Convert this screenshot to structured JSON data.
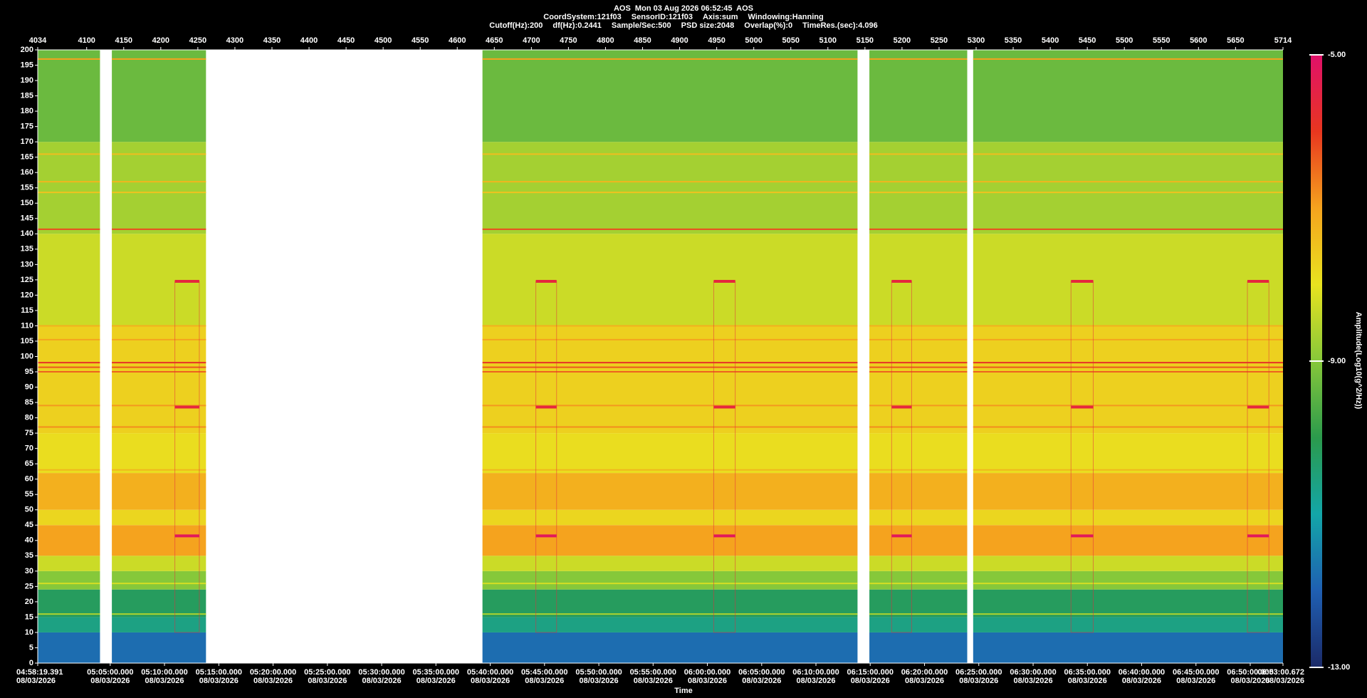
{
  "chart_data": {
    "type": "spectrogram",
    "title": "AOS  Mon 03 Aug 2026 06:52:45  AOS",
    "info_lines": [
      [
        "CoordSystem:121f03",
        "SensorID:121f03",
        "Axis:sum",
        "Windowing:Hanning"
      ],
      [
        "Cutoff(Hz):200",
        "df(Hz):0.2441",
        "Sample/Sec:500",
        "PSD size:2048",
        "Overlap(%):0",
        "TimeRes.(sec):4.096"
      ]
    ],
    "xlabel": "Time",
    "xlim": [
      4034,
      5714
    ],
    "xticks": [
      4034,
      4100,
      4150,
      4200,
      4250,
      4300,
      4350,
      4400,
      4450,
      4500,
      4550,
      4600,
      4650,
      4700,
      4750,
      4800,
      4850,
      4900,
      4950,
      5000,
      5050,
      5100,
      5150,
      5200,
      5250,
      5300,
      5350,
      5400,
      5450,
      5500,
      5550,
      5600,
      5650,
      5714
    ],
    "time_ticks": [
      {
        "value": 4034,
        "label": "04:58:19.391",
        "date": "08/03/2026"
      },
      {
        "value": 4131.8,
        "label": "05:05:00.000",
        "date": "08/03/2026"
      },
      {
        "value": 4205.0,
        "label": "05:10:00.000",
        "date": "08/03/2026"
      },
      {
        "value": 4278.3,
        "label": "05:15:00.000",
        "date": "08/03/2026"
      },
      {
        "value": 4351.5,
        "label": "05:20:00.000",
        "date": "08/03/2026"
      },
      {
        "value": 4424.8,
        "label": "05:25:00.000",
        "date": "08/03/2026"
      },
      {
        "value": 4498.0,
        "label": "05:30:00.000",
        "date": "08/03/2026"
      },
      {
        "value": 4571.2,
        "label": "05:35:00.000",
        "date": "08/03/2026"
      },
      {
        "value": 4644.5,
        "label": "05:40:00.000",
        "date": "08/03/2026"
      },
      {
        "value": 4717.7,
        "label": "05:45:00.000",
        "date": "08/03/2026"
      },
      {
        "value": 4791.0,
        "label": "05:50:00.000",
        "date": "08/03/2026"
      },
      {
        "value": 4864.2,
        "label": "05:55:00.000",
        "date": "08/03/2026"
      },
      {
        "value": 4937.4,
        "label": "06:00:00.000",
        "date": "08/03/2026"
      },
      {
        "value": 5010.7,
        "label": "06:05:00.000",
        "date": "08/03/2026"
      },
      {
        "value": 5083.9,
        "label": "06:10:00.000",
        "date": "08/03/2026"
      },
      {
        "value": 5157.1,
        "label": "06:15:00.000",
        "date": "08/03/2026"
      },
      {
        "value": 5230.4,
        "label": "06:20:00.000",
        "date": "08/03/2026"
      },
      {
        "value": 5303.6,
        "label": "06:25:00.000",
        "date": "08/03/2026"
      },
      {
        "value": 5376.9,
        "label": "06:30:00.000",
        "date": "08/03/2026"
      },
      {
        "value": 5450.1,
        "label": "06:35:00.000",
        "date": "08/03/2026"
      },
      {
        "value": 5523.3,
        "label": "06:40:00.000",
        "date": "08/03/2026"
      },
      {
        "value": 5596.6,
        "label": "06:45:00.000",
        "date": "08/03/2026"
      },
      {
        "value": 5669.8,
        "label": "06:50:00.000",
        "date": "08/03/2026"
      },
      {
        "value": 5714,
        "label": "06:53:00.672",
        "date": "08/03/2026"
      }
    ],
    "ylim": [
      0,
      200
    ],
    "yticks": [
      0,
      5,
      10,
      15,
      20,
      25,
      30,
      35,
      40,
      45,
      50,
      55,
      60,
      65,
      70,
      75,
      80,
      85,
      90,
      95,
      100,
      105,
      110,
      115,
      120,
      125,
      130,
      135,
      140,
      145,
      150,
      155,
      160,
      165,
      170,
      175,
      180,
      185,
      190,
      195,
      200
    ],
    "segments": [
      [
        4034,
        4118
      ],
      [
        4134,
        4261
      ],
      [
        4634,
        5140
      ],
      [
        5156,
        5288
      ],
      [
        5296,
        5714
      ]
    ],
    "bands": {
      "edges": [
        0,
        10,
        15,
        24,
        30,
        35,
        45,
        50,
        62,
        75,
        110,
        140,
        170,
        200
      ],
      "values": [
        -11.8,
        -10.6,
        -10.2,
        -9.0,
        -8.3,
        -7.0,
        -7.8,
        -7.2,
        -7.9,
        -7.7,
        -8.3,
        -8.7,
        -9.3
      ]
    },
    "tones": {
      "freqs": [
        197,
        166,
        157,
        153.5,
        141.5,
        110,
        105.5,
        98,
        96.5,
        95,
        84,
        77,
        63,
        26,
        16
      ],
      "values": [
        -7.0,
        -7.4,
        -7.3,
        -7.5,
        -6.2,
        -7.2,
        -7.0,
        -5.9,
        -6.3,
        -6.4,
        -6.9,
        -6.8,
        -7.3,
        -8.2,
        -8.6
      ]
    },
    "events": {
      "starts": [
        4219,
        4706,
        4946,
        5186,
        5428,
        5666
      ],
      "ends": [
        4252,
        4734,
        4975,
        5213,
        5458,
        5695
      ],
      "freqs": [
        124.5,
        83.5,
        41.5
      ],
      "values": [
        -5.6,
        -5.6,
        -5.2
      ]
    },
    "clim": [
      -13,
      -5
    ],
    "cticks": [
      {
        "value": -5,
        "label": "-5.00"
      },
      {
        "value": -9,
        "label": "-9.00"
      },
      {
        "value": -13,
        "label": "-13.00"
      }
    ],
    "clabel": "Amplitude(Log10(g^2/Hz))",
    "colormap": [
      "#1b2a68",
      "#1f5fb2",
      "#13a6a8",
      "#2b9a4c",
      "#86c83a",
      "#e9e31f",
      "#f5a31e",
      "#e8361f",
      "#e0106a"
    ]
  }
}
